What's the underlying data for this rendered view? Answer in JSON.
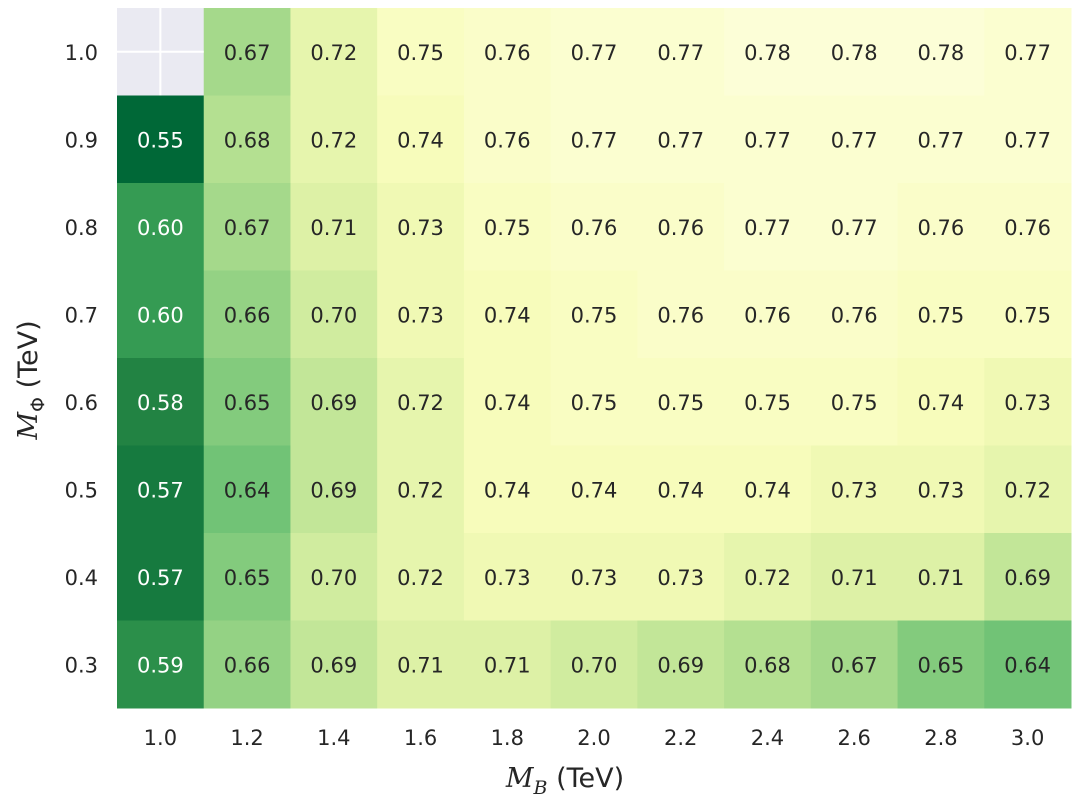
{
  "chart_data": {
    "type": "heatmap",
    "title": "",
    "xlabel": {
      "symbol": "M",
      "sub": "B",
      "unit": " (TeV)"
    },
    "ylabel": {
      "symbol": "M",
      "sub": "Φ",
      "unit": " (TeV)"
    },
    "x": [
      "1.0",
      "1.2",
      "1.4",
      "1.6",
      "1.8",
      "2.0",
      "2.2",
      "2.4",
      "2.6",
      "2.8",
      "3.0"
    ],
    "y": [
      "1.0",
      "0.9",
      "0.8",
      "0.7",
      "0.6",
      "0.5",
      "0.4",
      "0.3"
    ],
    "values": [
      [
        null,
        0.67,
        0.72,
        0.75,
        0.76,
        0.77,
        0.77,
        0.78,
        0.78,
        0.78,
        0.77
      ],
      [
        0.55,
        0.68,
        0.72,
        0.74,
        0.76,
        0.77,
        0.77,
        0.77,
        0.77,
        0.77,
        0.77
      ],
      [
        0.6,
        0.67,
        0.71,
        0.73,
        0.75,
        0.76,
        0.76,
        0.77,
        0.77,
        0.76,
        0.76
      ],
      [
        0.6,
        0.66,
        0.7,
        0.73,
        0.74,
        0.75,
        0.76,
        0.76,
        0.76,
        0.75,
        0.75
      ],
      [
        0.58,
        0.65,
        0.69,
        0.72,
        0.74,
        0.75,
        0.75,
        0.75,
        0.75,
        0.74,
        0.73
      ],
      [
        0.57,
        0.64,
        0.69,
        0.72,
        0.74,
        0.74,
        0.74,
        0.74,
        0.73,
        0.73,
        0.72
      ],
      [
        0.57,
        0.65,
        0.7,
        0.72,
        0.73,
        0.73,
        0.73,
        0.72,
        0.71,
        0.71,
        0.69
      ],
      [
        0.59,
        0.66,
        0.69,
        0.71,
        0.71,
        0.7,
        0.69,
        0.68,
        0.67,
        0.65,
        0.64
      ]
    ],
    "colormap": "YlGn",
    "color_range": [
      0.55,
      0.8
    ],
    "missing_color": "#eaeaf2",
    "grid": false,
    "legend": "none"
  }
}
